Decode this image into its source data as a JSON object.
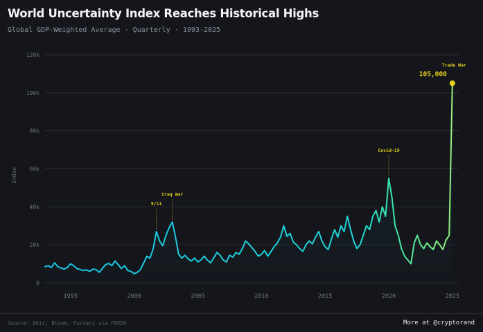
{
  "header": {
    "title": "World Uncertainty Index Reaches Historical Highs",
    "subtitle": "Global GDP-Weighted Average · Quarterly · 1993-2025"
  },
  "footer": {
    "source": "Source: Ahir, Bloom, Furceri via FRED®",
    "credit": "More at @cryptorand"
  },
  "colors": {
    "background": "#14161b",
    "grid": "#2a2d34",
    "line_early": "#19c6e6",
    "line_mid": "#2ee0b0",
    "line_late": "#8af07a",
    "annotation": "#e8d21a",
    "axis_text": "#6b707a"
  },
  "chart_data": {
    "type": "line",
    "title": "World Uncertainty Index Reaches Historical Highs",
    "ylabel": "Index",
    "xlabel": "",
    "ylim": [
      0,
      120000
    ],
    "xlim": [
      1993,
      2025.5
    ],
    "grid": true,
    "y_ticks": [
      0,
      20000,
      40000,
      60000,
      80000,
      100000,
      120000
    ],
    "y_tick_labels": [
      "0",
      "20k",
      "40k",
      "60k",
      "80k",
      "100k",
      "120k"
    ],
    "x_ticks": [
      1995,
      2000,
      2005,
      2010,
      2015,
      2020,
      2025
    ],
    "x_tick_labels": [
      "1995",
      "2000",
      "2005",
      "2010",
      "2015",
      "2020",
      "2025"
    ],
    "series": [
      {
        "x": [
          1993,
          1993.25,
          1993.5,
          1993.75,
          1994,
          1994.25,
          1994.5,
          1994.75,
          1995,
          1995.25,
          1995.5,
          1995.75,
          1996,
          1996.25,
          1996.5,
          1996.75,
          1997,
          1997.25,
          1997.5,
          1997.75,
          1998,
          1998.25,
          1998.5,
          1998.75,
          1999,
          1999.25,
          1999.5,
          1999.75,
          2000,
          2000.25,
          2000.5,
          2000.75,
          2001,
          2001.25,
          2001.5,
          2001.75,
          2002,
          2002.25,
          2002.5,
          2002.75,
          2003,
          2003.25,
          2003.5,
          2003.75,
          2004,
          2004.25,
          2004.5,
          2004.75,
          2005,
          2005.25,
          2005.5,
          2005.75,
          2006,
          2006.25,
          2006.5,
          2006.75,
          2007,
          2007.25,
          2007.5,
          2007.75,
          2008,
          2008.25,
          2008.5,
          2008.75,
          2009,
          2009.25,
          2009.5,
          2009.75,
          2010,
          2010.25,
          2010.5,
          2010.75,
          2011,
          2011.25,
          2011.5,
          2011.75,
          2012,
          2012.25,
          2012.5,
          2012.75,
          2013,
          2013.25,
          2013.5,
          2013.75,
          2014,
          2014.25,
          2014.5,
          2014.75,
          2015,
          2015.25,
          2015.5,
          2015.75,
          2016,
          2016.25,
          2016.5,
          2016.75,
          2017,
          2017.25,
          2017.5,
          2017.75,
          2018,
          2018.25,
          2018.5,
          2018.75,
          2019,
          2019.25,
          2019.5,
          2019.75,
          2020,
          2020.25,
          2020.5,
          2020.75,
          2021,
          2021.25,
          2021.5,
          2021.75,
          2022,
          2022.25,
          2022.5,
          2022.75,
          2023,
          2023.25,
          2023.5,
          2023.75,
          2024,
          2024.25,
          2024.5,
          2024.75,
          2025
        ],
        "values": [
          8500,
          9000,
          8000,
          10500,
          8500,
          7800,
          7200,
          8000,
          10000,
          9000,
          7500,
          7000,
          6500,
          6800,
          6000,
          7200,
          7000,
          5500,
          7500,
          9500,
          10200,
          9000,
          11500,
          9500,
          7500,
          9000,
          6500,
          6000,
          4800,
          5500,
          7000,
          10500,
          14000,
          13000,
          18000,
          27000,
          22000,
          19500,
          25000,
          29000,
          32000,
          24000,
          15000,
          13000,
          14500,
          12500,
          11500,
          13000,
          11000,
          12000,
          14000,
          12000,
          10500,
          13000,
          16000,
          14500,
          12000,
          11000,
          14500,
          13500,
          16000,
          15000,
          18000,
          22000,
          20500,
          18500,
          16500,
          14000,
          15000,
          17000,
          14000,
          16500,
          19000,
          21000,
          24000,
          30000,
          24500,
          26000,
          21500,
          20000,
          18000,
          16500,
          20000,
          22000,
          20500,
          24000,
          27000,
          22000,
          19000,
          17500,
          23000,
          28000,
          24000,
          30000,
          27000,
          35000,
          28000,
          22000,
          18000,
          20000,
          25000,
          30000,
          28000,
          35000,
          38000,
          32000,
          40000,
          35000,
          55000,
          45000,
          30000,
          25000,
          18000,
          14000,
          12000,
          10000,
          21000,
          25000,
          20000,
          18000,
          21000,
          19000,
          17500,
          22000,
          20000,
          17500,
          22500,
          25000,
          105000
        ]
      }
    ],
    "annotations": [
      {
        "label": "9/11",
        "x": 2001.75,
        "y": 27000
      },
      {
        "label": "Iraq War",
        "x": 2003,
        "y": 32000
      },
      {
        "label": "Covid-19",
        "x": 2020,
        "y": 55000
      },
      {
        "label": "Trade War",
        "x": 2025,
        "y": 105000,
        "value_label": "105,000"
      }
    ]
  }
}
